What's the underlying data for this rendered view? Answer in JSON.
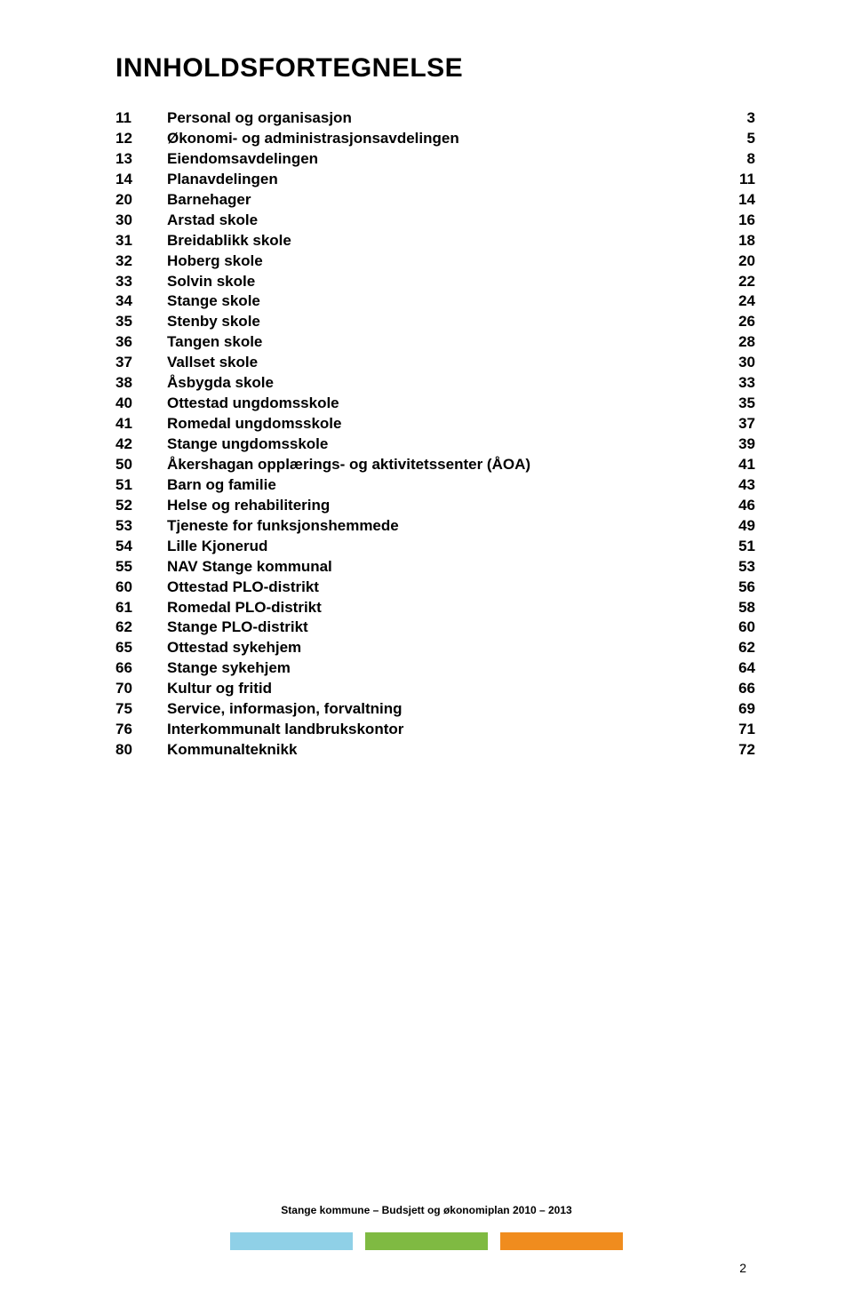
{
  "title": "INNHOLDSFORTEGNELSE",
  "toc": [
    {
      "num": "11",
      "label": "Personal og organisasjon",
      "page": "3"
    },
    {
      "num": "12",
      "label": "Økonomi- og administrasjonsavdelingen",
      "page": "5"
    },
    {
      "num": "13",
      "label": "Eiendomsavdelingen",
      "page": "8"
    },
    {
      "num": "14",
      "label": "Planavdelingen",
      "page": "11"
    },
    {
      "num": "20",
      "label": "Barnehager",
      "page": "14"
    },
    {
      "num": "30",
      "label": "Arstad skole",
      "page": "16"
    },
    {
      "num": "31",
      "label": "Breidablikk skole",
      "page": "18"
    },
    {
      "num": "32",
      "label": "Hoberg skole",
      "page": "20"
    },
    {
      "num": "33",
      "label": "Solvin skole",
      "page": "22"
    },
    {
      "num": "34",
      "label": "Stange skole",
      "page": "24"
    },
    {
      "num": "35",
      "label": "Stenby skole",
      "page": "26"
    },
    {
      "num": "36",
      "label": "Tangen skole",
      "page": "28"
    },
    {
      "num": "37",
      "label": "Vallset skole",
      "page": "30"
    },
    {
      "num": "38",
      "label": "Åsbygda skole",
      "page": "33"
    },
    {
      "num": "40",
      "label": "Ottestad ungdomsskole",
      "page": "35"
    },
    {
      "num": "41",
      "label": "Romedal ungdomsskole",
      "page": "37"
    },
    {
      "num": "42",
      "label": "Stange ungdomsskole",
      "page": "39"
    },
    {
      "num": "50",
      "label": "Åkershagan opplærings- og aktivitetssenter (ÅOA)",
      "page": "41"
    },
    {
      "num": "51",
      "label": "Barn og familie",
      "page": "43"
    },
    {
      "num": "52",
      "label": "Helse og rehabilitering",
      "page": "46"
    },
    {
      "num": "53",
      "label": "Tjeneste for funksjonshemmede",
      "page": "49"
    },
    {
      "num": "54",
      "label": "Lille Kjonerud",
      "page": "51"
    },
    {
      "num": "55",
      "label": "NAV Stange kommunal",
      "page": "53"
    },
    {
      "num": "60",
      "label": "Ottestad PLO-distrikt",
      "page": "56"
    },
    {
      "num": "61",
      "label": "Romedal PLO-distrikt",
      "page": "58"
    },
    {
      "num": "62",
      "label": "Stange PLO-distrikt",
      "page": "60"
    },
    {
      "num": "65",
      "label": "Ottestad sykehjem",
      "page": "62"
    },
    {
      "num": "66",
      "label": "Stange sykehjem",
      "page": "64"
    },
    {
      "num": "70",
      "label": "Kultur og fritid",
      "page": "66"
    },
    {
      "num": "75",
      "label": "Service, informasjon, forvaltning",
      "page": "69"
    },
    {
      "num": "76",
      "label": "Interkommunalt landbrukskontor",
      "page": "71"
    },
    {
      "num": "80",
      "label": "Kommunalteknikk",
      "page": "72"
    }
  ],
  "footer": {
    "text": "Stange kommune – Budsjett og økonomiplan 2010 – 2013",
    "bar_colors": [
      "#8fd0e7",
      "#7fba42",
      "#f08c1e"
    ]
  },
  "page_number": "2"
}
